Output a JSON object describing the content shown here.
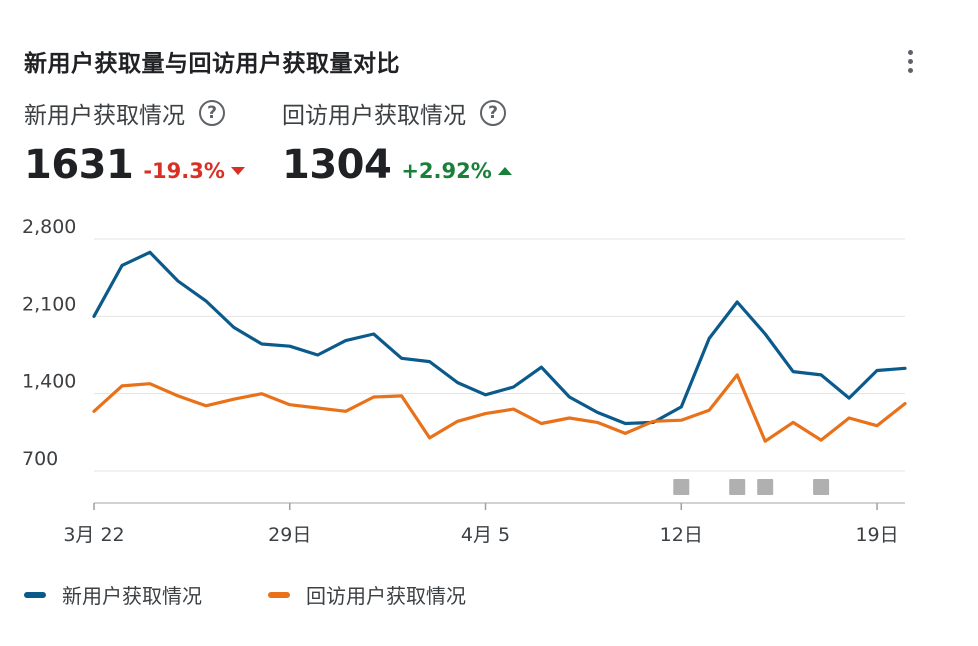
{
  "card": {
    "title": "新用户获取量与回访用户获取量对比",
    "menu_icon": "more-vert-icon"
  },
  "metrics": [
    {
      "label": "新用户获取情况",
      "value": "1631",
      "delta": "-19.3%",
      "direction": "down",
      "color": "#d93025"
    },
    {
      "label": "回访用户获取情况",
      "value": "1304",
      "delta": "+2.92%",
      "direction": "up",
      "color": "#188038"
    }
  ],
  "help_icon": "?",
  "legend": [
    {
      "label": "新用户获取情况",
      "color": "#0b5a8c"
    },
    {
      "label": "回访用户获取情况",
      "color": "#e8711a"
    }
  ],
  "chart_data": {
    "type": "line",
    "x_tick_labels": [
      "3月 22",
      "29日",
      "4月 5",
      "12日",
      "19日"
    ],
    "x_tick_index": [
      0,
      7,
      14,
      21,
      28
    ],
    "yticks": [
      700,
      1400,
      2100,
      2800
    ],
    "ytick_labels": [
      "700",
      "1,400",
      "2,100",
      "2,800"
    ],
    "ylim": [
      420,
      2900
    ],
    "grid": true,
    "legend_position": "bottom-left",
    "series": [
      {
        "name": "新用户获取情况",
        "color": "#0b5a8c",
        "values": [
          2100,
          2560,
          2680,
          2420,
          2240,
          2000,
          1850,
          1830,
          1750,
          1880,
          1940,
          1720,
          1690,
          1500,
          1390,
          1460,
          1640,
          1370,
          1230,
          1130,
          1140,
          1280,
          1900,
          2230,
          1940,
          1600,
          1570,
          1360,
          1610,
          1630
        ]
      },
      {
        "name": "回访用户获取情况",
        "color": "#e8711a",
        "values": [
          1240,
          1470,
          1490,
          1380,
          1290,
          1350,
          1400,
          1300,
          1270,
          1240,
          1370,
          1380,
          1000,
          1150,
          1220,
          1260,
          1130,
          1180,
          1140,
          1040,
          1150,
          1160,
          1250,
          1570,
          970,
          1140,
          980,
          1180,
          1110,
          1310
        ]
      }
    ],
    "annotation_marker_index": [
      21,
      23,
      24,
      26
    ],
    "annotation_marker_color": "#b0b0b0"
  }
}
